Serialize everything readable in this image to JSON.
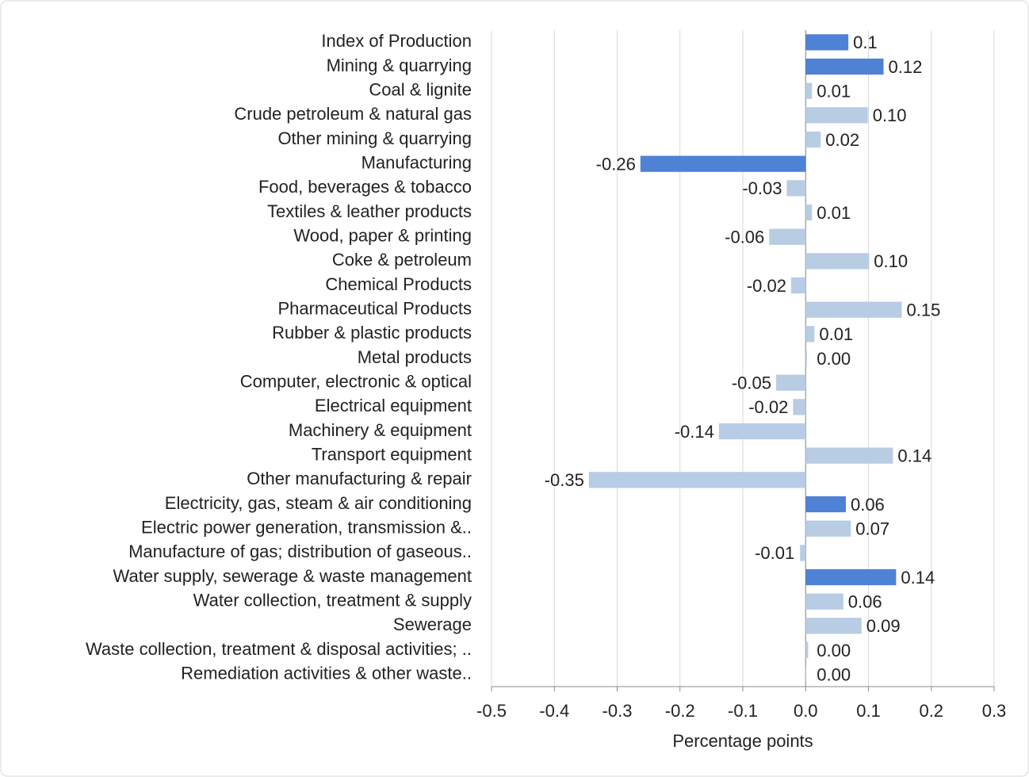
{
  "chart_data": {
    "type": "hbar",
    "categories": [
      "Index of Production",
      "Mining & quarrying",
      "Coal & lignite",
      "Crude petroleum & natural gas",
      "Other mining & quarrying",
      "Manufacturing",
      "Food, beverages & tobacco",
      "Textiles & leather products",
      "Wood, paper & printing",
      "Coke & petroleum",
      "Chemical Products",
      "Pharmaceutical  Products",
      "Rubber & plastic products",
      "Metal products",
      "Computer, electronic & optical",
      "Electrical equipment",
      "Machinery & equipment",
      "Transport equipment",
      "Other manufacturing & repair",
      "Electricity, gas, steam & air conditioning",
      "Electric power generation, transmission &..",
      "Manufacture of gas; distribution of gaseous..",
      "Water supply, sewerage & waste management",
      "Water collection, treatment & supply",
      "Sewerage",
      "Waste collection, treatment & disposal activities; ..",
      "Remediation activities & other waste.."
    ],
    "values": [
      0.068,
      0.124,
      0.01,
      0.099,
      0.024,
      -0.263,
      -0.03,
      0.01,
      -0.058,
      0.101,
      -0.023,
      0.153,
      0.014,
      0.002,
      -0.047,
      -0.02,
      -0.138,
      0.139,
      -0.345,
      0.064,
      0.072,
      -0.009,
      0.144,
      0.06,
      0.089,
      0.004,
      0.001
    ],
    "value_labels": [
      "0.1",
      "0.12",
      "0.01",
      "0.10",
      "0.02",
      "-0.26",
      "-0.03",
      "0.01",
      "-0.06",
      "0.10",
      "-0.02",
      "0.15",
      "0.01",
      "0.00",
      "-0.05",
      "-0.02",
      "-0.14",
      "0.14",
      "-0.35",
      "0.06",
      "0.07",
      "-0.01",
      "0.14",
      "0.06",
      "0.09",
      "0.00",
      "0.00"
    ],
    "colors": [
      "#4f81d4",
      "#4f81d4",
      "#b8cce4",
      "#b8cce4",
      "#b8cce4",
      "#4f81d4",
      "#b8cce4",
      "#b8cce4",
      "#b8cce4",
      "#b8cce4",
      "#b8cce4",
      "#b8cce4",
      "#b8cce4",
      "#b8cce4",
      "#b8cce4",
      "#b8cce4",
      "#b8cce4",
      "#b8cce4",
      "#b8cce4",
      "#4f81d4",
      "#b8cce4",
      "#b8cce4",
      "#4f81d4",
      "#b8cce4",
      "#b8cce4",
      "#b8cce4",
      "#b8cce4"
    ],
    "x_label": "Percentage points",
    "xlim": [
      -0.5,
      0.3
    ],
    "xticks": [
      -0.5,
      -0.4,
      -0.3,
      -0.2,
      -0.1,
      {
        "value": 0,
        "label": "0.0"
      },
      0.1,
      0.2,
      0.3
    ],
    "grid": true
  }
}
